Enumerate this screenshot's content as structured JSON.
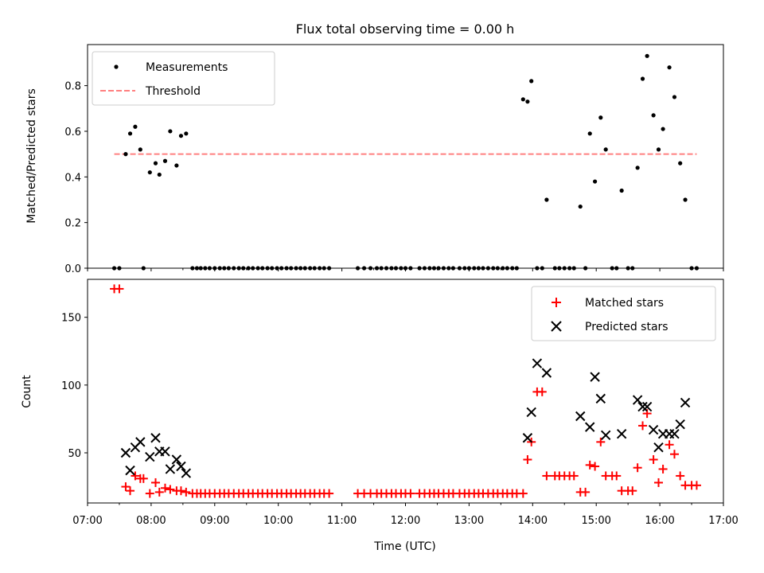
{
  "chart_data": [
    {
      "type": "scatter",
      "title": "Flux total observing time = 0.00 h",
      "xlabel": "",
      "ylabel": "Matched/Predicted stars",
      "xlim": [
        7.0,
        17.0
      ],
      "ylim": [
        0.0,
        0.98
      ],
      "yticks": [
        0.0,
        0.2,
        0.4,
        0.6,
        0.8
      ],
      "ytick_labels": [
        "0.0",
        "0.2",
        "0.4",
        "0.6",
        "0.8"
      ],
      "legend": {
        "position": "top-left",
        "entries": [
          "Measurements",
          "Threshold"
        ]
      },
      "threshold": {
        "name": "Threshold",
        "value": 0.5,
        "x_range": [
          7.42,
          16.58
        ],
        "color": "#ff8080"
      },
      "series": [
        {
          "name": "Measurements",
          "color": "#000000",
          "x": [
            7.42,
            7.5,
            7.6,
            7.67,
            7.75,
            7.83,
            7.88,
            7.98,
            8.07,
            8.13,
            8.22,
            8.3,
            8.4,
            8.47,
            8.55,
            8.65,
            8.72,
            8.78,
            8.85,
            8.92,
            9.0,
            9.08,
            9.15,
            9.22,
            9.3,
            9.38,
            9.45,
            9.53,
            9.6,
            9.68,
            9.75,
            9.83,
            9.9,
            9.98,
            10.05,
            10.13,
            10.2,
            10.28,
            10.35,
            10.42,
            10.5,
            10.57,
            10.65,
            10.72,
            10.8,
            11.25,
            11.35,
            11.45,
            11.55,
            11.62,
            11.7,
            11.78,
            11.85,
            11.93,
            12.0,
            12.08,
            12.22,
            12.3,
            12.38,
            12.45,
            12.52,
            12.6,
            12.68,
            12.75,
            12.85,
            12.93,
            13.0,
            13.08,
            13.15,
            13.22,
            13.3,
            13.38,
            13.45,
            13.53,
            13.6,
            13.68,
            13.75,
            13.85,
            13.92,
            13.98,
            14.07,
            14.15,
            14.22,
            14.35,
            14.42,
            14.5,
            14.58,
            14.65,
            14.75,
            14.83,
            14.9,
            14.98,
            15.07,
            15.15,
            15.25,
            15.32,
            15.4,
            15.5,
            15.57,
            15.65,
            15.73,
            15.8,
            15.9,
            15.98,
            16.05,
            16.15,
            16.23,
            16.32,
            16.4,
            16.5,
            16.58
          ],
          "y": [
            0.0,
            0.0,
            0.5,
            0.59,
            0.62,
            0.52,
            0.0,
            0.42,
            0.46,
            0.41,
            0.47,
            0.6,
            0.45,
            0.58,
            0.59,
            0.0,
            0.0,
            0.0,
            0.0,
            0.0,
            0.0,
            0.0,
            0.0,
            0.0,
            0.0,
            0.0,
            0.0,
            0.0,
            0.0,
            0.0,
            0.0,
            0.0,
            0.0,
            0.0,
            0.0,
            0.0,
            0.0,
            0.0,
            0.0,
            0.0,
            0.0,
            0.0,
            0.0,
            0.0,
            0.0,
            0.0,
            0.0,
            0.0,
            0.0,
            0.0,
            0.0,
            0.0,
            0.0,
            0.0,
            0.0,
            0.0,
            0.0,
            0.0,
            0.0,
            0.0,
            0.0,
            0.0,
            0.0,
            0.0,
            0.0,
            0.0,
            0.0,
            0.0,
            0.0,
            0.0,
            0.0,
            0.0,
            0.0,
            0.0,
            0.0,
            0.0,
            0.0,
            0.74,
            0.73,
            0.82,
            0.0,
            0.0,
            0.3,
            0.0,
            0.0,
            0.0,
            0.0,
            0.0,
            0.27,
            0.0,
            0.59,
            0.38,
            0.66,
            0.52,
            0.0,
            0.0,
            0.34,
            0.0,
            0.0,
            0.44,
            0.83,
            0.93,
            0.67,
            0.52,
            0.61,
            0.88,
            0.75,
            0.46,
            0.3,
            0.0,
            0.0
          ]
        }
      ]
    },
    {
      "type": "scatter",
      "title": "",
      "xlabel": "Time (UTC)",
      "ylabel": "Count",
      "xlim": [
        7.0,
        17.0
      ],
      "ylim": [
        13,
        178
      ],
      "xticks": [
        7,
        8,
        9,
        10,
        11,
        12,
        13,
        14,
        15,
        16,
        17
      ],
      "xtick_labels": [
        "07:00",
        "08:00",
        "09:00",
        "10:00",
        "11:00",
        "12:00",
        "13:00",
        "14:00",
        "15:00",
        "16:00",
        "17:00"
      ],
      "yticks": [
        50,
        100,
        150
      ],
      "ytick_labels": [
        "50",
        "100",
        "150"
      ],
      "legend": {
        "position": "top-right",
        "entries": [
          "Matched stars",
          "Predicted stars"
        ]
      },
      "series": [
        {
          "name": "Matched stars",
          "marker": "+",
          "color": "#ff0000",
          "x": [
            7.42,
            7.5,
            7.6,
            7.67,
            7.75,
            7.83,
            7.88,
            7.98,
            8.07,
            8.13,
            8.22,
            8.3,
            8.4,
            8.47,
            8.55,
            8.65,
            8.72,
            8.78,
            8.85,
            8.92,
            9.0,
            9.08,
            9.15,
            9.22,
            9.3,
            9.38,
            9.45,
            9.53,
            9.6,
            9.68,
            9.75,
            9.83,
            9.9,
            9.98,
            10.05,
            10.13,
            10.2,
            10.28,
            10.35,
            10.42,
            10.5,
            10.57,
            10.65,
            10.72,
            10.8,
            11.25,
            11.35,
            11.45,
            11.55,
            11.62,
            11.7,
            11.78,
            11.85,
            11.93,
            12.0,
            12.08,
            12.22,
            12.3,
            12.38,
            12.45,
            12.52,
            12.6,
            12.68,
            12.75,
            12.85,
            12.93,
            13.0,
            13.08,
            13.15,
            13.22,
            13.3,
            13.38,
            13.45,
            13.53,
            13.6,
            13.68,
            13.75,
            13.85,
            13.92,
            13.98,
            14.07,
            14.15,
            14.22,
            14.35,
            14.42,
            14.5,
            14.58,
            14.65,
            14.75,
            14.83,
            14.9,
            14.98,
            15.07,
            15.15,
            15.25,
            15.32,
            15.4,
            15.5,
            15.57,
            15.65,
            15.73,
            15.8,
            15.9,
            15.98,
            16.05,
            16.15,
            16.23,
            16.32,
            16.4,
            16.5,
            16.58
          ],
          "y": [
            171,
            171,
            25,
            22,
            33,
            31,
            31,
            20,
            28,
            21,
            24,
            23,
            22,
            22,
            21,
            20,
            20,
            20,
            20,
            20,
            20,
            20,
            20,
            20,
            20,
            20,
            20,
            20,
            20,
            20,
            20,
            20,
            20,
            20,
            20,
            20,
            20,
            20,
            20,
            20,
            20,
            20,
            20,
            20,
            20,
            20,
            20,
            20,
            20,
            20,
            20,
            20,
            20,
            20,
            20,
            20,
            20,
            20,
            20,
            20,
            20,
            20,
            20,
            20,
            20,
            20,
            20,
            20,
            20,
            20,
            20,
            20,
            20,
            20,
            20,
            20,
            20,
            20,
            45,
            58,
            95,
            95,
            33,
            33,
            33,
            33,
            33,
            33,
            21,
            21,
            41,
            40,
            58,
            33,
            33,
            33,
            22,
            22,
            22,
            39,
            70,
            79,
            45,
            28,
            38,
            56,
            49,
            33,
            26,
            26,
            26
          ]
        },
        {
          "name": "Predicted stars",
          "marker": "x",
          "color": "#000000",
          "x": [
            7.6,
            7.67,
            7.75,
            7.83,
            7.98,
            8.07,
            8.13,
            8.22,
            8.3,
            8.4,
            8.47,
            8.55,
            13.92,
            13.98,
            14.07,
            14.22,
            14.75,
            14.9,
            14.98,
            15.07,
            15.15,
            15.4,
            15.65,
            15.73,
            15.8,
            15.9,
            15.98,
            16.05,
            16.15,
            16.23,
            16.32,
            16.4
          ],
          "y": [
            50,
            37,
            54,
            58,
            47,
            61,
            51,
            51,
            38,
            45,
            40,
            35,
            61,
            80,
            116,
            109,
            77,
            69,
            106,
            90,
            63,
            64,
            89,
            84,
            84,
            67,
            54,
            64,
            64,
            64,
            71,
            87
          ]
        }
      ]
    }
  ]
}
